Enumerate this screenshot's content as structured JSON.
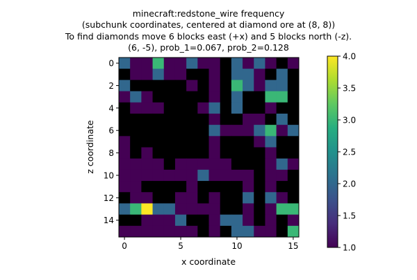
{
  "chart_data": {
    "type": "heatmap",
    "title_lines": [
      "minecraft:redstone_wire frequency",
      "(subchunk coordinates, centered at diamond ore at (8, 8))",
      "To find diamonds move 6 blocks east (+x) and 5 blocks north (-z).",
      "(6, -5), prob_1=0.067, prob_2=0.128"
    ],
    "xlabel": "x coordinate",
    "ylabel": "z coordinate",
    "x_ticks": [
      "0",
      "5",
      "10",
      "15"
    ],
    "y_ticks": [
      "0",
      "2",
      "4",
      "6",
      "8",
      "10",
      "12",
      "14"
    ],
    "colormap": "viridis",
    "under_color": "#000000",
    "vmin": 1.0,
    "vmax": 4.0,
    "colorbar_ticks": [
      "1.0",
      "1.5",
      "2.0",
      "2.5",
      "3.0",
      "3.5",
      "4.0"
    ],
    "values": [
      [
        2,
        1,
        1,
        3,
        1,
        1,
        2,
        1,
        1,
        0,
        2,
        1,
        2,
        1,
        0,
        1
      ],
      [
        0,
        1,
        1,
        2,
        1,
        1,
        0,
        0,
        1,
        0,
        2,
        2,
        1,
        0,
        2,
        0
      ],
      [
        2,
        0,
        0,
        0,
        0,
        0,
        1,
        0,
        1,
        0,
        3,
        2,
        1,
        2,
        2,
        0
      ],
      [
        1,
        2,
        1,
        0,
        0,
        0,
        0,
        0,
        1,
        0,
        2,
        0,
        0,
        3,
        3,
        0
      ],
      [
        0,
        1,
        1,
        1,
        0,
        0,
        0,
        1,
        2,
        0,
        2,
        0,
        0,
        1,
        0,
        0
      ],
      [
        0,
        0,
        0,
        0,
        0,
        0,
        0,
        0,
        1,
        0,
        0,
        1,
        1,
        0,
        2,
        0
      ],
      [
        0,
        0,
        0,
        0,
        0,
        0,
        0,
        0,
        2,
        1,
        1,
        1,
        2,
        3,
        1,
        2
      ],
      [
        1,
        0,
        0,
        0,
        0,
        0,
        0,
        0,
        1,
        0,
        0,
        0,
        1,
        2,
        0,
        0
      ],
      [
        1,
        0,
        1,
        0,
        0,
        0,
        0,
        0,
        1,
        0,
        0,
        0,
        0,
        1,
        0,
        0
      ],
      [
        1,
        1,
        1,
        1,
        0,
        1,
        1,
        1,
        1,
        1,
        0,
        0,
        0,
        1,
        2,
        1
      ],
      [
        1,
        1,
        1,
        1,
        1,
        1,
        1,
        2,
        1,
        1,
        1,
        1,
        0,
        1,
        1,
        0
      ],
      [
        1,
        1,
        0,
        0,
        0,
        0,
        1,
        0,
        0,
        0,
        0,
        1,
        0,
        1,
        0,
        0
      ],
      [
        0,
        1,
        1,
        0,
        0,
        1,
        1,
        0,
        1,
        0,
        0,
        2,
        0,
        2,
        1,
        0
      ],
      [
        2,
        3,
        4,
        2,
        2,
        1,
        1,
        1,
        1,
        0,
        0,
        1,
        0,
        1,
        3,
        3
      ],
      [
        0,
        0,
        1,
        1,
        1,
        2,
        0,
        0,
        1,
        2,
        2,
        1,
        0,
        1,
        0,
        1
      ],
      [
        1,
        1,
        1,
        1,
        1,
        1,
        1,
        0,
        1,
        0,
        2,
        2,
        1,
        1,
        0,
        3
      ]
    ]
  }
}
